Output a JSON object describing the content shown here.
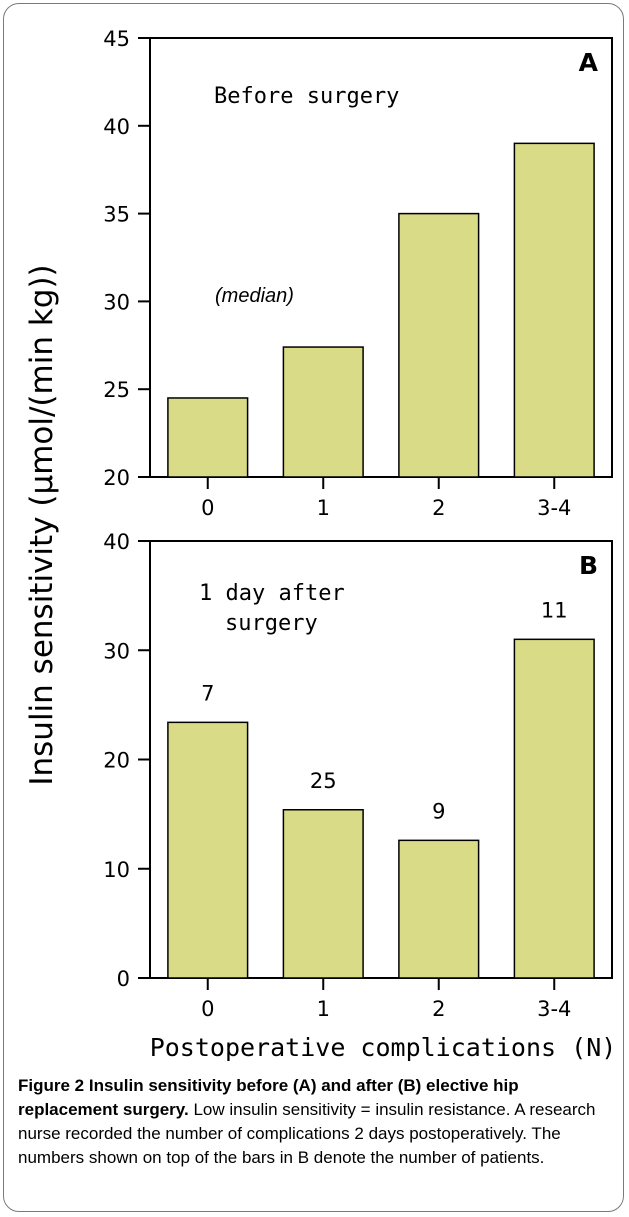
{
  "chart_data": [
    {
      "type": "bar",
      "panel_letter": "A",
      "annotation": "Before surgery",
      "note": "(median)",
      "categories": [
        "0",
        "1",
        "2",
        "3-4"
      ],
      "values": [
        24.5,
        27.4,
        35,
        39
      ],
      "ylim": [
        20,
        45
      ],
      "yticks": [
        "20",
        "25",
        "30",
        "35",
        "40",
        "45"
      ],
      "ylabel": "Insulin sensitivity (μmol/(min kg))",
      "xlabel": "",
      "bar_color": "#dadb87",
      "grid": false
    },
    {
      "type": "bar",
      "panel_letter": "B",
      "annotation": [
        "1 day after",
        "surgery"
      ],
      "categories": [
        "0",
        "1",
        "2",
        "3-4"
      ],
      "values": [
        23.4,
        15.4,
        12.6,
        31
      ],
      "data_labels": [
        "7",
        "25",
        "9",
        "11"
      ],
      "ylim": [
        0,
        40
      ],
      "yticks": [
        "0",
        "10",
        "20",
        "30",
        "40"
      ],
      "ylabel": "Insulin sensitivity (μmol/(min kg))",
      "xlabel": "Postoperative complications (N)",
      "bar_color": "#dadb87",
      "grid": false
    }
  ],
  "caption": {
    "bold": "Figure 2 Insulin sensitivity before (A) and after (B) elective hip replacement surgery.",
    "text": " Low insulin sensitivity = insulin resistance. A research nurse recorded the number of complications 2 days postoperatively. The numbers shown on top of the bars in B denote the number of patients."
  }
}
